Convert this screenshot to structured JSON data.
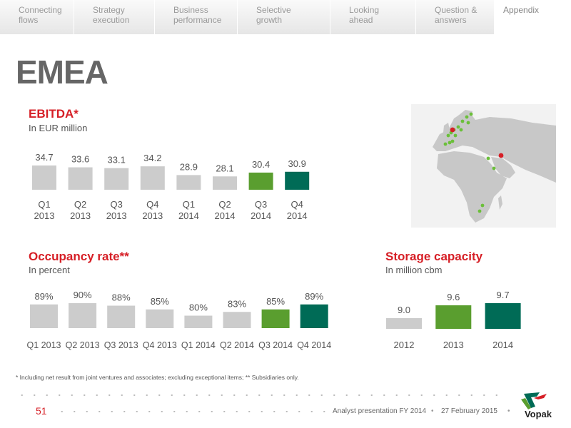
{
  "nav": {
    "tabs": [
      {
        "line1": "Connecting",
        "line2": "flows"
      },
      {
        "line1": "Strategy",
        "line2": "execution"
      },
      {
        "line1": "Business",
        "line2": "performance"
      },
      {
        "line1": "Selective",
        "line2": "growth"
      },
      {
        "line1": "Looking",
        "line2": "ahead"
      },
      {
        "line1": "Question &",
        "line2": "answers"
      },
      {
        "line1": "Appendix",
        "line2": ""
      }
    ]
  },
  "page_title": "EMEA",
  "colors": {
    "gray": "#cccccc",
    "green": "#5a9e2f",
    "dark_green": "#006b56",
    "red": "#d61f26"
  },
  "chart_data": [
    {
      "type": "bar",
      "title": "EBITDA*",
      "subtitle": "In EUR million",
      "categories": [
        "Q1 2013",
        "Q2 2013",
        "Q3 2013",
        "Q4 2013",
        "Q1 2014",
        "Q2 2014",
        "Q3 2014",
        "Q4 2014"
      ],
      "category_lines": [
        [
          "Q1",
          "2013"
        ],
        [
          "Q2",
          "2013"
        ],
        [
          "Q3",
          "2013"
        ],
        [
          "Q4",
          "2013"
        ],
        [
          "Q1",
          "2014"
        ],
        [
          "Q2",
          "2014"
        ],
        [
          "Q3",
          "2014"
        ],
        [
          "Q4",
          "2014"
        ]
      ],
      "values": [
        34.7,
        33.6,
        33.1,
        34.2,
        28.9,
        28.1,
        30.4,
        30.9
      ],
      "labels": [
        "34.7",
        "33.6",
        "33.1",
        "34.2",
        "28.9",
        "28.1",
        "30.4",
        "30.9"
      ],
      "colors": [
        "#cccccc",
        "#cccccc",
        "#cccccc",
        "#cccccc",
        "#cccccc",
        "#cccccc",
        "#5a9e2f",
        "#006b56"
      ]
    },
    {
      "type": "bar",
      "title": "Occupancy rate**",
      "subtitle": "In percent",
      "categories": [
        "Q1 2013",
        "Q2 2013",
        "Q3 2013",
        "Q4 2013",
        "Q1 2014",
        "Q2 2014",
        "Q3 2014",
        "Q4 2014"
      ],
      "values": [
        89,
        90,
        88,
        85,
        80,
        83,
        85,
        89
      ],
      "labels": [
        "89%",
        "90%",
        "88%",
        "85%",
        "80%",
        "83%",
        "85%",
        "89%"
      ],
      "colors": [
        "#cccccc",
        "#cccccc",
        "#cccccc",
        "#cccccc",
        "#cccccc",
        "#cccccc",
        "#5a9e2f",
        "#006b56"
      ]
    },
    {
      "type": "bar",
      "title": "Storage capacity",
      "subtitle": "In million cbm",
      "categories": [
        "2012",
        "2013",
        "2014"
      ],
      "values": [
        9.0,
        9.6,
        9.7
      ],
      "labels": [
        "9.0",
        "9.6",
        "9.7"
      ],
      "colors": [
        "#cccccc",
        "#5a9e2f",
        "#006b56"
      ]
    }
  ],
  "footnote": "* Including net result from joint ventures and associates; excluding exceptional items; ** Subsidiaries only.",
  "footer": {
    "page_number": "51",
    "presentation": "Analyst presentation FY 2014",
    "date": "27 February 2015",
    "logo_text": "Vopak"
  }
}
